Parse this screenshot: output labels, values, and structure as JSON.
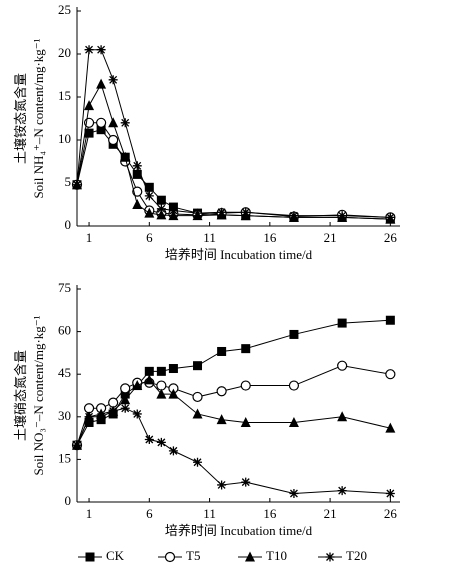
{
  "chart_data": [
    {
      "type": "line",
      "ylabel": [
        "土壤铵态氮含量",
        "Soil NH₄⁺–N content/mg·kg⁻¹"
      ],
      "xlabel": "培养时间 Incubation time/d",
      "x": [
        0,
        1,
        2,
        3,
        4,
        5,
        6,
        7,
        8,
        10,
        12,
        14,
        18,
        22,
        26
      ],
      "xlim": [
        0,
        26.8
      ],
      "xticks": [
        1,
        6,
        11,
        16,
        21,
        26
      ],
      "ylim": [
        0,
        25
      ],
      "yticks": [
        0,
        5,
        10,
        15,
        20,
        25
      ],
      "series": [
        {
          "name": "CK",
          "color": "#000000",
          "marker": "square",
          "values": [
            4.8,
            10.8,
            11.2,
            9.5,
            8,
            6,
            4.5,
            3,
            2.2,
            1.5,
            1.3,
            1.2,
            1,
            1,
            0.8
          ]
        },
        {
          "name": "T5",
          "color": "#000000",
          "marker": "circle",
          "values": [
            4.8,
            12,
            12,
            10,
            7.5,
            4,
            1.8,
            1.5,
            1.4,
            1.3,
            1.5,
            1.6,
            1.1,
            1.3,
            1
          ]
        },
        {
          "name": "T10",
          "color": "#000000",
          "marker": "triangle",
          "values": [
            4.8,
            14,
            16.5,
            12,
            8,
            2.5,
            1.5,
            1.3,
            1.2,
            1.2,
            1.3,
            1.2,
            1,
            1,
            0.8
          ]
        },
        {
          "name": "T20",
          "color": "#000000",
          "marker": "asterisk",
          "values": [
            4.8,
            20.5,
            20.5,
            17,
            12,
            7,
            3.5,
            2,
            1.8,
            1.5,
            1.6,
            1.6,
            1.2,
            1.2,
            1
          ]
        }
      ]
    },
    {
      "type": "line",
      "ylabel": [
        "土壤硝态氮含量",
        "Soil NO₃⁻–N content/mg·kg⁻¹"
      ],
      "xlabel": "培养时间 Incubation time/d",
      "x": [
        0,
        1,
        2,
        3,
        4,
        5,
        6,
        7,
        8,
        10,
        12,
        14,
        18,
        22,
        26
      ],
      "xlim": [
        0,
        26.8
      ],
      "xticks": [
        1,
        6,
        11,
        16,
        21,
        26
      ],
      "ylim": [
        0,
        75
      ],
      "yticks": [
        0,
        15,
        30,
        45,
        60,
        75
      ],
      "series": [
        {
          "color": "#000000",
          "marker": "square",
          "values": [
            20,
            28,
            29,
            31,
            38,
            41,
            46,
            46,
            47,
            48,
            53,
            54,
            59,
            63,
            64
          ]
        },
        {
          "color": "#000000",
          "marker": "circle",
          "values": [
            20,
            33,
            33,
            35,
            40,
            42,
            42,
            41,
            40,
            37,
            39,
            41,
            41,
            48,
            45
          ]
        },
        {
          "color": "#000000",
          "marker": "triangle",
          "values": [
            20,
            30,
            31,
            32,
            36,
            41,
            43,
            38,
            38,
            31,
            29,
            28,
            28,
            30,
            26
          ]
        },
        {
          "color": "#000000",
          "marker": "asterisk",
          "values": [
            20,
            30,
            30,
            32,
            33,
            31,
            22,
            21,
            18,
            14,
            6,
            7,
            3,
            4,
            3
          ]
        }
      ]
    }
  ]
}
